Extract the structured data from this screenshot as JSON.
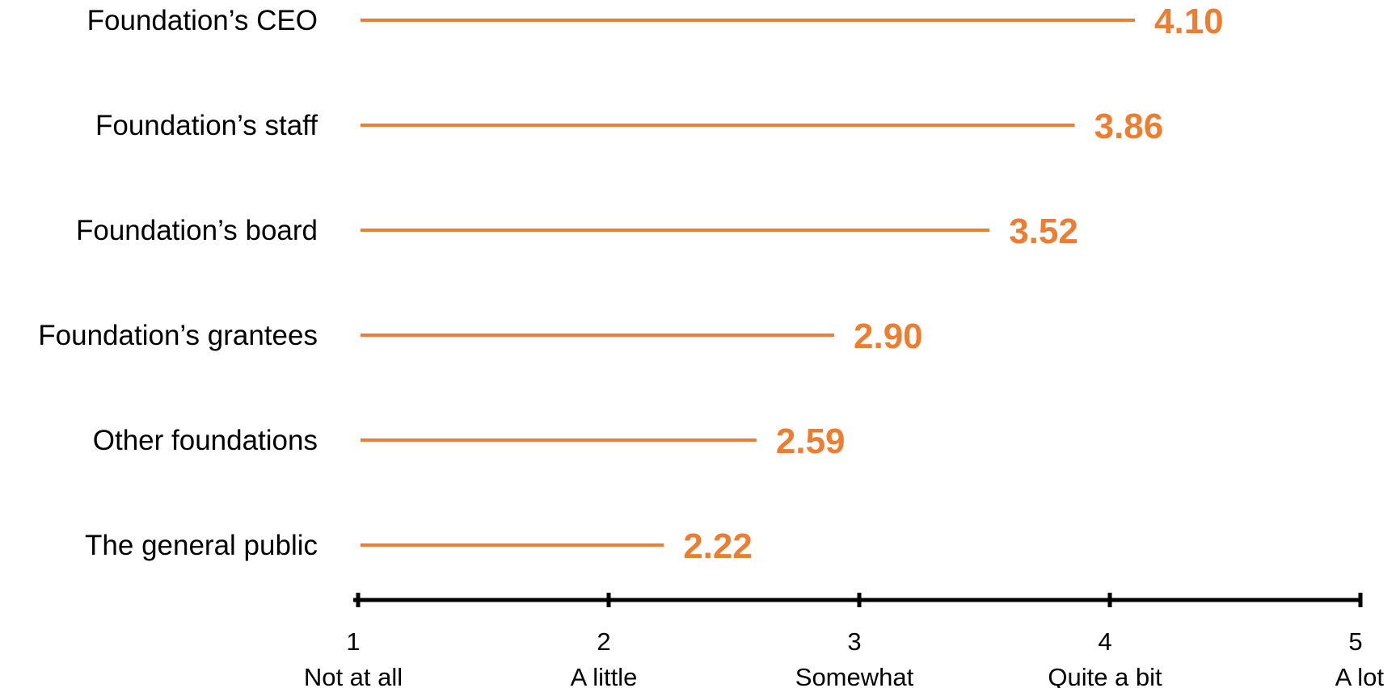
{
  "chart_data": {
    "type": "bar",
    "orientation": "horizontal",
    "categories": [
      "Foundation’s CEO",
      "Foundation’s staff",
      "Foundation’s board",
      "Foundation’s grantees",
      "Other foundations",
      "The general public"
    ],
    "values": [
      4.1,
      3.86,
      3.52,
      2.9,
      2.59,
      2.22
    ],
    "value_labels": [
      "4.10",
      "3.86",
      "3.52",
      "2.90",
      "2.59",
      "2.22"
    ],
    "xlim": [
      1,
      5
    ],
    "ticks": [
      {
        "value": 1,
        "label": "1",
        "sublabel": "Not at all"
      },
      {
        "value": 2,
        "label": "2",
        "sublabel": "A little"
      },
      {
        "value": 3,
        "label": "3",
        "sublabel": "Somewhat"
      },
      {
        "value": 4,
        "label": "4",
        "sublabel": "Quite a bit"
      },
      {
        "value": 5,
        "label": "5",
        "sublabel": "A lot"
      }
    ],
    "grid": false,
    "legend": "none",
    "colors": {
      "bar": "#ED7D31",
      "value_label": "#ED7D31",
      "axis": "#000000",
      "text": "#000000"
    }
  }
}
